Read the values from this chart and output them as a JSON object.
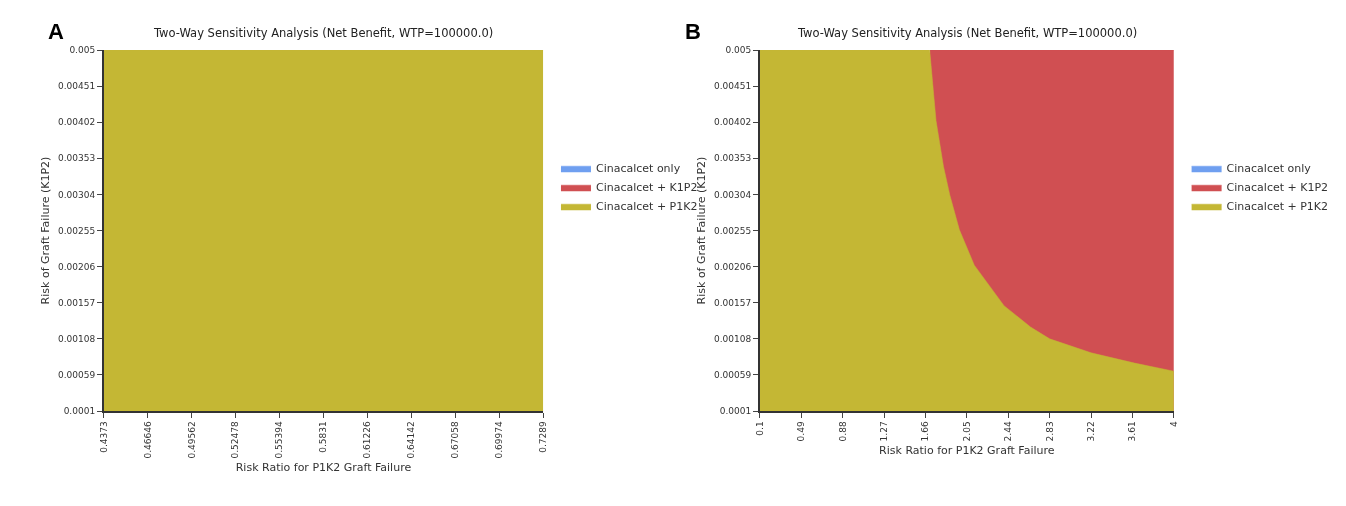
{
  "chart_data": [
    {
      "type": "area",
      "title": "Two-Way Sensitivity Analysis (Net Benefit, WTP=100000.0)",
      "xlabel": "Risk Ratio for P1K2 Graft Failure",
      "ylabel": "Risk of Graft Failure (K1P2)",
      "annotations": [
        "A"
      ],
      "x": [
        0.4373,
        0.7289
      ],
      "series": [
        {
          "name": "Cinacalcet only",
          "color": "#6f9ff0",
          "values": [
            null,
            null
          ]
        },
        {
          "name": "Cinacalcet + K1P2",
          "color": "#d04f52",
          "values": [
            null,
            null
          ]
        },
        {
          "name": "Cinacalcet + P1K2",
          "color": "#c4b734",
          "values": [
            0.005,
            0.005
          ]
        }
      ],
      "xlim": [
        0.4373,
        0.7289
      ],
      "xticks": [
        0.4373,
        0.46646,
        0.49562,
        0.52478,
        0.55394,
        0.5831,
        0.61226,
        0.64142,
        0.67058,
        0.69974,
        0.7289
      ],
      "ylim": [
        0.0001,
        0.005
      ],
      "yticks": [
        0.0001,
        0.00059,
        0.00108,
        0.00157,
        0.00206,
        0.00255,
        0.00304,
        0.00353,
        0.00402,
        0.00451,
        0.005
      ],
      "legend": "right"
    },
    {
      "type": "area",
      "title": "Two-Way Sensitivity Analysis (Net Benefit, WTP=100000.0)",
      "xlabel": "Risk Ratio for P1K2 Graft Failure",
      "ylabel": "Risk of Graft Failure (K1P2)",
      "annotations": [
        "B"
      ],
      "x": [
        0.1,
        1.7,
        1.76,
        1.83,
        1.89,
        1.98,
        2.12,
        2.4,
        2.65,
        2.83,
        3.22,
        3.63,
        4
      ],
      "series": [
        {
          "name": "Cinacalcet only",
          "color": "#6f9ff0",
          "values": [
            null,
            null,
            null,
            null,
            null,
            null,
            null,
            null,
            null,
            null,
            null,
            null,
            null
          ]
        },
        {
          "name": "Cinacalcet + K1P2",
          "color": "#d04f52",
          "x": [
            1.7,
            4
          ],
          "values": [
            0.005,
            0.005
          ]
        },
        {
          "name": "Cinacalcet + P1K2",
          "color": "#c4b734",
          "values": [
            0.005,
            0.005,
            0.00404,
            0.00342,
            0.00303,
            0.00256,
            0.00208,
            0.00153,
            0.00124,
            0.00108,
            0.00089,
            0.00075,
            0.00064
          ]
        }
      ],
      "xlim": [
        0.1,
        4
      ],
      "xticks": [
        0.1,
        0.49,
        0.88,
        1.27,
        1.66,
        2.05,
        2.44,
        2.83,
        3.22,
        3.61,
        4
      ],
      "ylim": [
        0.0001,
        0.005
      ],
      "yticks": [
        0.0001,
        0.00059,
        0.00108,
        0.00157,
        0.00206,
        0.00255,
        0.00304,
        0.00353,
        0.00402,
        0.00451,
        0.005
      ],
      "legend": "right"
    }
  ]
}
